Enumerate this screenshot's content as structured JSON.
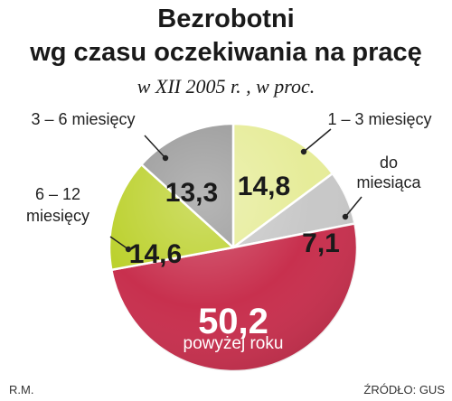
{
  "chart_data": {
    "type": "pie",
    "title": "Bezrobotni\nwg czasu oczekiwania na pracę",
    "subtitle": "w XII 2005 r. , w proc.",
    "slices": [
      {
        "label": "1 – 3 miesięcy",
        "value": 14.8,
        "value_label": "14,8",
        "color": "#e6ec99"
      },
      {
        "label": "do\nmiesiąca",
        "value": 7.1,
        "value_label": "7,1",
        "color": "#c8c8c8"
      },
      {
        "label": "powyżej roku",
        "value": 50.2,
        "value_label": "50,2",
        "color": "#c8304e"
      },
      {
        "label": "6 – 12\nmiesięcy",
        "value": 14.6,
        "value_label": "14,6",
        "color": "#bcd12e"
      },
      {
        "label": "3 – 6 miesięcy",
        "value": 13.3,
        "value_label": "13,3",
        "color": "#9a9a9a"
      }
    ],
    "source": "ŹRÓDŁO: GUS",
    "author": "R.M."
  }
}
